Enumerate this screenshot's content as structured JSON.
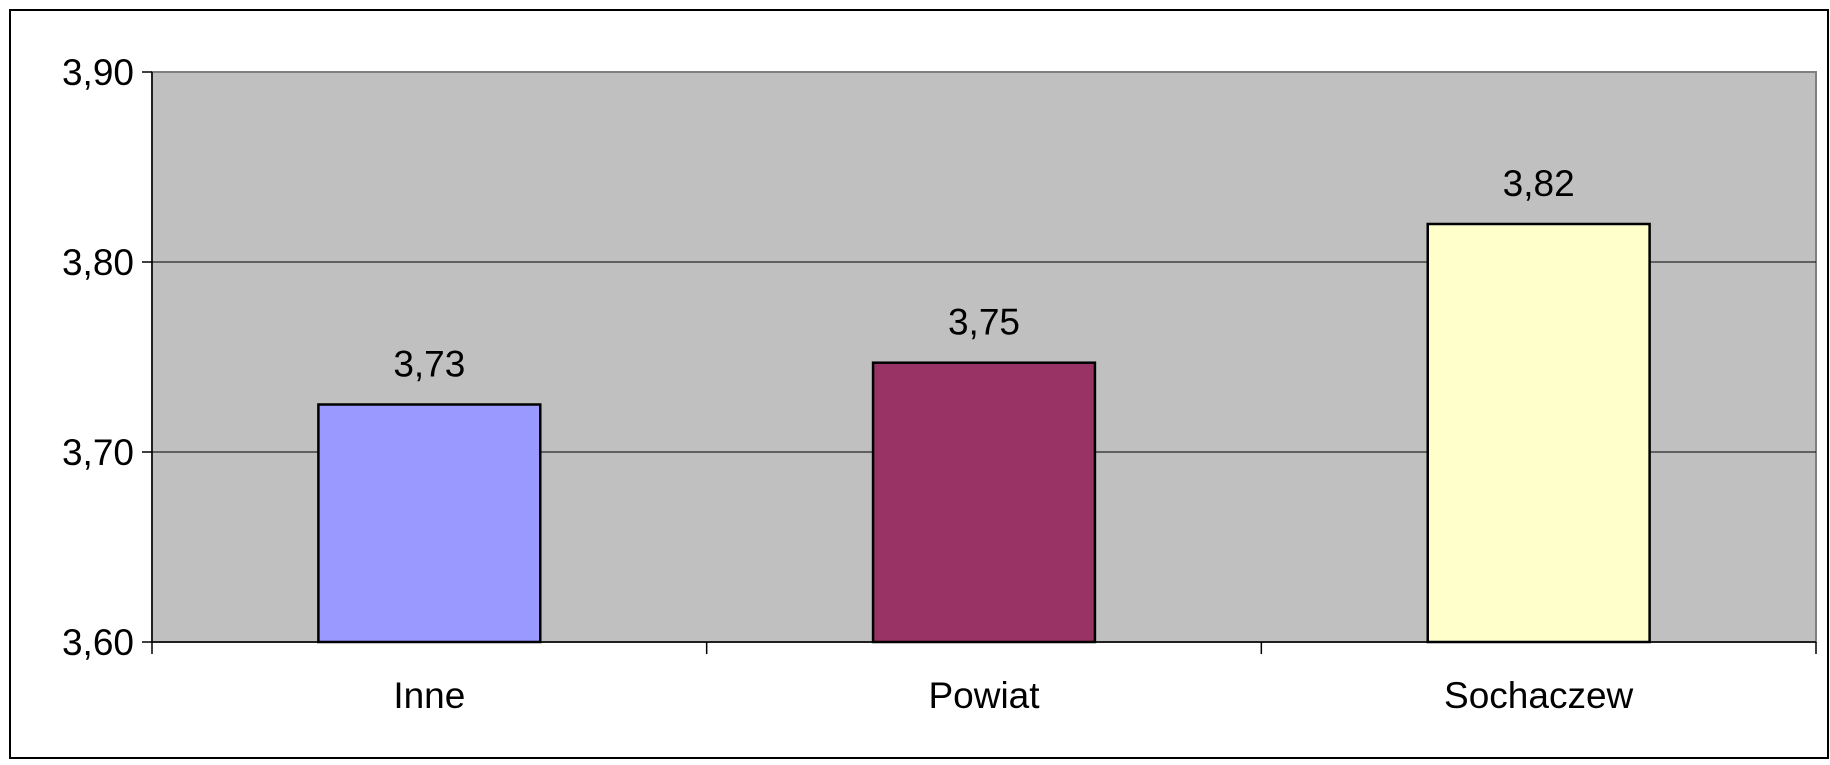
{
  "chart_data": {
    "type": "bar",
    "categories": [
      "Inne",
      "Powiat",
      "Sochaczew"
    ],
    "values": [
      3.725,
      3.747,
      3.82
    ],
    "data_labels": [
      "3,73",
      "3,75",
      "3,82"
    ],
    "bar_colors": [
      "#9999ff",
      "#993366",
      "#ffffcc"
    ],
    "ylim": [
      3.6,
      3.9
    ],
    "y_ticks": [
      3.6,
      3.7,
      3.8,
      3.9
    ],
    "y_tick_labels": [
      "3,60",
      "3,70",
      "3,80",
      "3,90"
    ],
    "title": "",
    "xlabel": "",
    "ylabel": "",
    "grid": true,
    "legend": false,
    "plot_background": "#c0c0c0",
    "bar_outline_color": "#000000"
  }
}
